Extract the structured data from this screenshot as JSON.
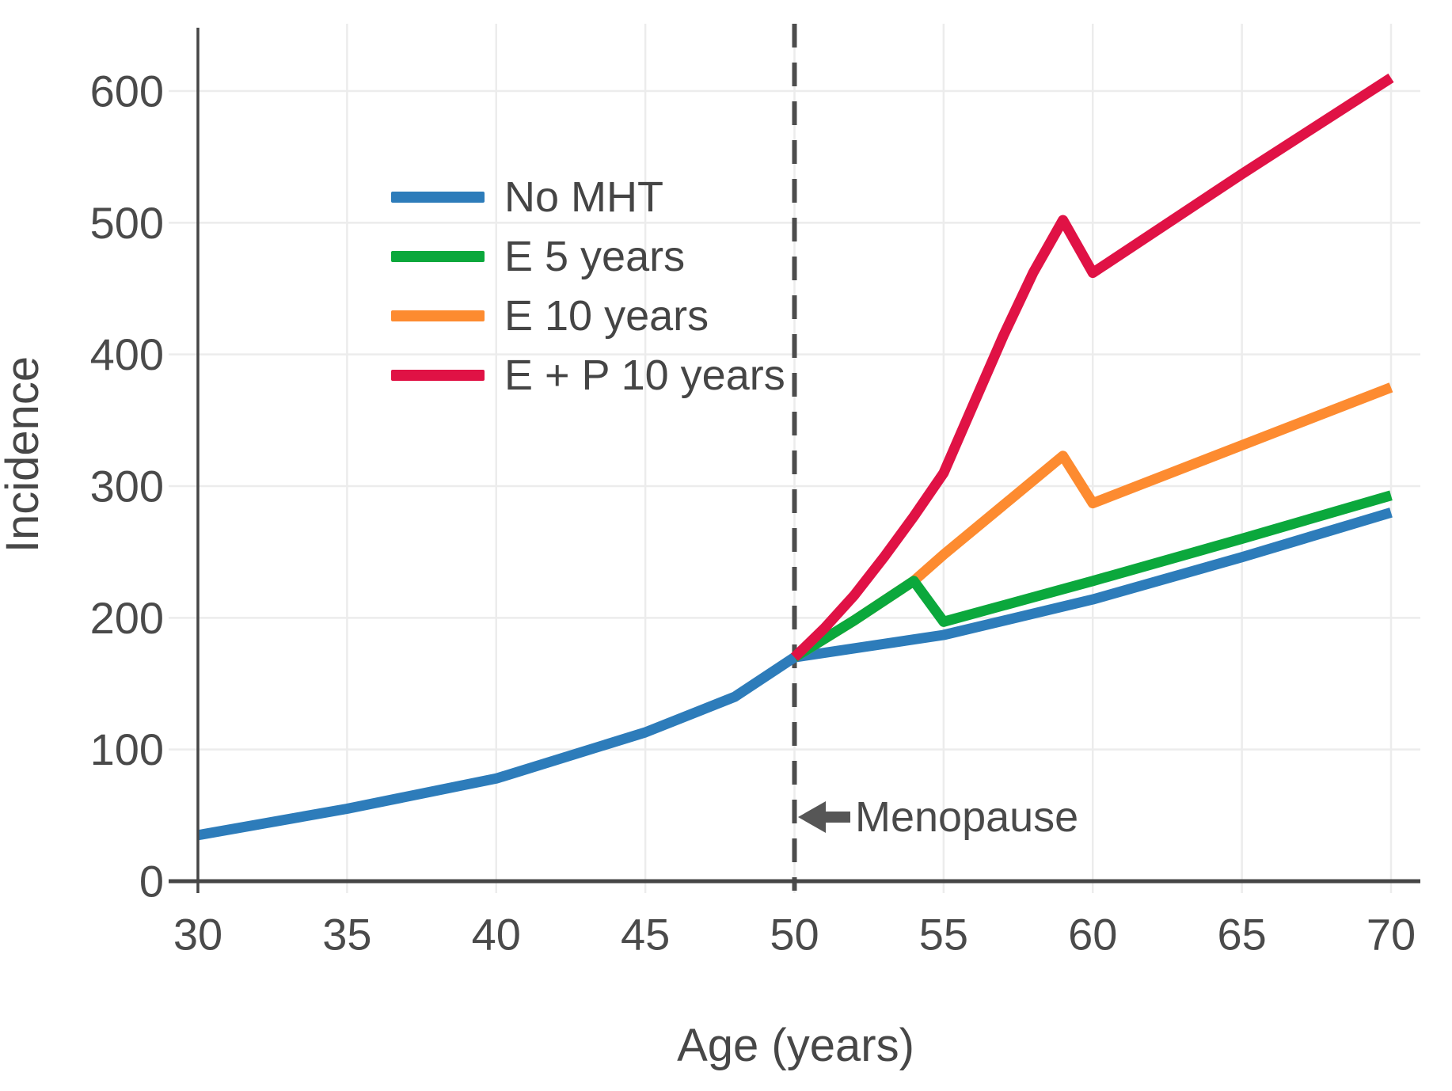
{
  "chart_data": {
    "type": "line",
    "title": "",
    "xlabel": "Age (years)",
    "ylabel": "Incidence",
    "x_ticks": [
      30,
      35,
      40,
      45,
      50,
      55,
      60,
      65,
      70
    ],
    "y_ticks": [
      0,
      100,
      200,
      300,
      400,
      500,
      600
    ],
    "xlim": [
      30,
      70
    ],
    "ylim": [
      0,
      650
    ],
    "grid": true,
    "legend_position": "upper left inside plot",
    "grid_color": "#ececec",
    "axis_color": "#464646",
    "text_color": "#4a4a4a",
    "reference_line": {
      "x": 50,
      "style": "dashed",
      "color": "#4d4d4d"
    },
    "annotation": {
      "label": "Menopause",
      "arrow_direction": "left",
      "x": 50.3,
      "y": 49
    },
    "series": [
      {
        "name": "No MHT",
        "color": "#2d7cba",
        "points": [
          [
            30,
            35
          ],
          [
            35,
            55
          ],
          [
            40,
            78
          ],
          [
            45,
            113
          ],
          [
            48,
            140
          ],
          [
            50,
            170
          ],
          [
            55,
            187
          ],
          [
            60,
            214
          ],
          [
            65,
            246
          ],
          [
            70,
            280
          ]
        ]
      },
      {
        "name": "E 5 years",
        "color": "#0ba83c",
        "points": [
          [
            50,
            170
          ],
          [
            52,
            198
          ],
          [
            54,
            228
          ],
          [
            55,
            197
          ],
          [
            60,
            228
          ],
          [
            65,
            260
          ],
          [
            70,
            293
          ]
        ]
      },
      {
        "name": "E 10 years",
        "color": "#fd8b30",
        "points": [
          [
            50,
            170
          ],
          [
            52,
            198
          ],
          [
            54,
            228
          ],
          [
            55,
            248
          ],
          [
            59,
            323
          ],
          [
            60,
            287
          ],
          [
            65,
            331
          ],
          [
            70,
            375
          ]
        ]
      },
      {
        "name": "E + P 10 years",
        "color": "#e01245",
        "points": [
          [
            50,
            170
          ],
          [
            51,
            192
          ],
          [
            52,
            217
          ],
          [
            53,
            246
          ],
          [
            54,
            277
          ],
          [
            55,
            310
          ],
          [
            56,
            362
          ],
          [
            57,
            414
          ],
          [
            58,
            462
          ],
          [
            59,
            502
          ],
          [
            60,
            462
          ],
          [
            65,
            537
          ],
          [
            70,
            610
          ]
        ]
      }
    ]
  }
}
